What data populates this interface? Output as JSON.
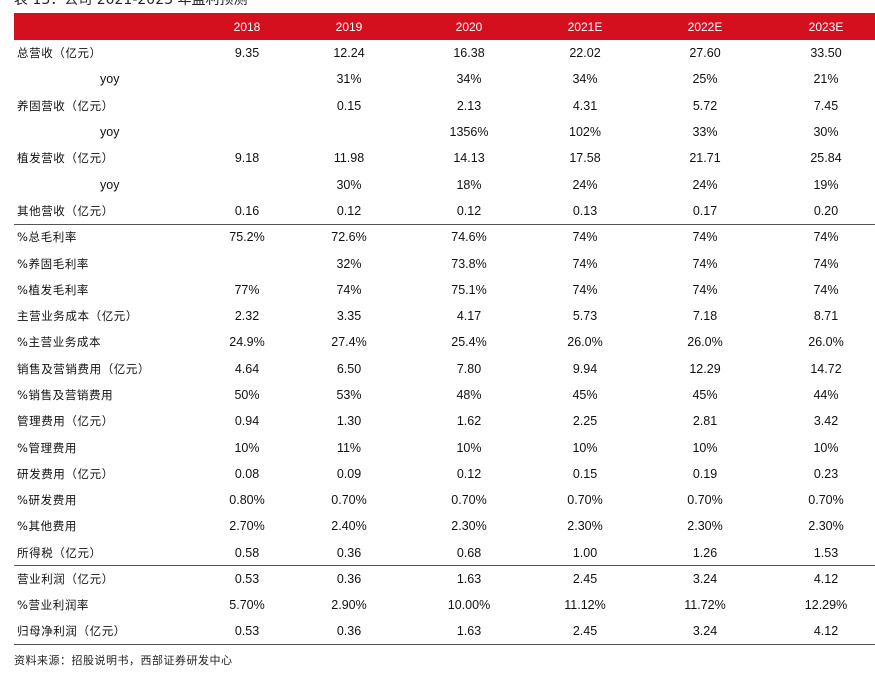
{
  "caption": "表 13：公司 2021-2023 年盈利预测",
  "columns": [
    "2018",
    "2019",
    "2020",
    "2021E",
    "2022E",
    "2023E"
  ],
  "rows": [
    {
      "label": "总营收（亿元）",
      "sub": false,
      "sep": false,
      "values": [
        "9.35",
        "12.24",
        "16.38",
        "22.02",
        "27.60",
        "33.50"
      ]
    },
    {
      "label": "yoy",
      "sub": true,
      "sep": false,
      "values": [
        "",
        "31%",
        "34%",
        "34%",
        "25%",
        "21%"
      ]
    },
    {
      "label": "养固营收（亿元）",
      "sub": false,
      "sep": false,
      "values": [
        "",
        "0.15",
        "2.13",
        "4.31",
        "5.72",
        "7.45"
      ]
    },
    {
      "label": "yoy",
      "sub": true,
      "sep": false,
      "values": [
        "",
        "",
        "1356%",
        "102%",
        "33%",
        "30%"
      ]
    },
    {
      "label": "植发营收（亿元）",
      "sub": false,
      "sep": false,
      "values": [
        "9.18",
        "11.98",
        "14.13",
        "17.58",
        "21.71",
        "25.84"
      ]
    },
    {
      "label": "yoy",
      "sub": true,
      "sep": false,
      "values": [
        "",
        "30%",
        "18%",
        "24%",
        "24%",
        "19%"
      ]
    },
    {
      "label": "其他营收（亿元）",
      "sub": false,
      "sep": false,
      "values": [
        "0.16",
        "0.12",
        "0.12",
        "0.13",
        "0.17",
        "0.20"
      ]
    },
    {
      "label": "%总毛利率",
      "sub": false,
      "sep": true,
      "values": [
        "75.2%",
        "72.6%",
        "74.6%",
        "74%",
        "74%",
        "74%"
      ]
    },
    {
      "label": "%养固毛利率",
      "sub": false,
      "sep": false,
      "values": [
        "",
        "32%",
        "73.8%",
        "74%",
        "74%",
        "74%"
      ]
    },
    {
      "label": "%植发毛利率",
      "sub": false,
      "sep": false,
      "values": [
        "77%",
        "74%",
        "75.1%",
        "74%",
        "74%",
        "74%"
      ]
    },
    {
      "label": "主营业务成本（亿元）",
      "sub": false,
      "sep": false,
      "values": [
        "2.32",
        "3.35",
        "4.17",
        "5.73",
        "7.18",
        "8.71"
      ]
    },
    {
      "label": "%主营业务成本",
      "sub": false,
      "sep": false,
      "values": [
        "24.9%",
        "27.4%",
        "25.4%",
        "26.0%",
        "26.0%",
        "26.0%"
      ]
    },
    {
      "label": "销售及营销费用（亿元）",
      "sub": false,
      "sep": false,
      "values": [
        "4.64",
        "6.50",
        "7.80",
        "9.94",
        "12.29",
        "14.72"
      ]
    },
    {
      "label": "%销售及营销费用",
      "sub": false,
      "sep": false,
      "values": [
        "50%",
        "53%",
        "48%",
        "45%",
        "45%",
        "44%"
      ]
    },
    {
      "label": "管理费用（亿元）",
      "sub": false,
      "sep": false,
      "values": [
        "0.94",
        "1.30",
        "1.62",
        "2.25",
        "2.81",
        "3.42"
      ]
    },
    {
      "label": "%管理费用",
      "sub": false,
      "sep": false,
      "values": [
        "10%",
        "11%",
        "10%",
        "10%",
        "10%",
        "10%"
      ]
    },
    {
      "label": "研发费用（亿元）",
      "sub": false,
      "sep": false,
      "values": [
        "0.08",
        "0.09",
        "0.12",
        "0.15",
        "0.19",
        "0.23"
      ]
    },
    {
      "label": "%研发费用",
      "sub": false,
      "sep": false,
      "values": [
        "0.80%",
        "0.70%",
        "0.70%",
        "0.70%",
        "0.70%",
        "0.70%"
      ]
    },
    {
      "label": "%其他费用",
      "sub": false,
      "sep": false,
      "values": [
        "2.70%",
        "2.40%",
        "2.30%",
        "2.30%",
        "2.30%",
        "2.30%"
      ]
    },
    {
      "label": "所得税（亿元）",
      "sub": false,
      "sep": false,
      "values": [
        "0.58",
        "0.36",
        "0.68",
        "1.00",
        "1.26",
        "1.53"
      ]
    },
    {
      "label": "营业利润（亿元）",
      "sub": false,
      "sep": true,
      "values": [
        "0.53",
        "0.36",
        "1.63",
        "2.45",
        "3.24",
        "4.12"
      ]
    },
    {
      "label": "%营业利润率",
      "sub": false,
      "sep": false,
      "values": [
        "5.70%",
        "2.90%",
        "10.00%",
        "11.12%",
        "11.72%",
        "12.29%"
      ]
    },
    {
      "label": "归母净利润（亿元）",
      "sub": false,
      "sep": false,
      "values": [
        "0.53",
        "0.36",
        "1.63",
        "2.45",
        "3.24",
        "4.12"
      ]
    }
  ],
  "source": "资料来源：招股说明书，西部证券研发中心",
  "colors": {
    "header_bg": "#d4101f",
    "header_text": "#ffffff",
    "rule": "#555555"
  }
}
